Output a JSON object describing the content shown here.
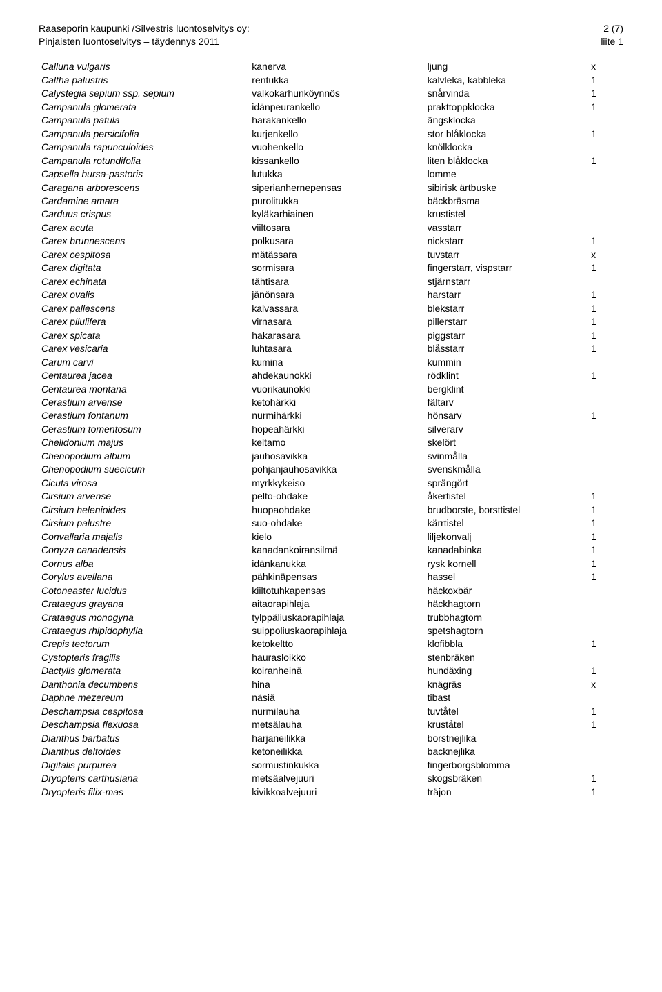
{
  "header": {
    "left1": "Raaseporin kaupunki /Silvestris luontoselvitys oy:",
    "left2": "Pinjaisten luontoselvitys – täydennys 2011",
    "right1": "2 (7)",
    "right2": "liite 1"
  },
  "table": {
    "columns": [
      "scientific",
      "finnish",
      "swedish",
      "mark"
    ],
    "col_widths_pct": [
      36,
      30,
      28,
      6
    ],
    "font_size_pt": 14,
    "italic_columns": [
      0
    ],
    "rows": [
      [
        "Calluna vulgaris",
        "kanerva",
        "ljung",
        "x"
      ],
      [
        "Caltha palustris",
        "rentukka",
        "kalvleka, kabbleka",
        "1"
      ],
      [
        "Calystegia sepium ssp. sepium",
        "valkokarhunköynnös",
        "snårvinda",
        "1"
      ],
      [
        "Campanula glomerata",
        "idänpeurankello",
        "prakttoppklocka",
        "1"
      ],
      [
        "Campanula patula",
        "harakankello",
        "ängsklocka",
        ""
      ],
      [
        "Campanula persicifolia",
        "kurjenkello",
        "stor blåklocka",
        "1"
      ],
      [
        "Campanula rapunculoides",
        "vuohenkello",
        "knölklocka",
        ""
      ],
      [
        "Campanula rotundifolia",
        "kissankello",
        "liten blåklocka",
        "1"
      ],
      [
        "Capsella bursa-pastoris",
        "lutukka",
        "lomme",
        ""
      ],
      [
        "Caragana arborescens",
        "siperianhernepensas",
        "sibirisk ärtbuske",
        ""
      ],
      [
        "Cardamine amara",
        "purolitukka",
        "bäckbräsma",
        ""
      ],
      [
        "Carduus crispus",
        "kyläkarhiainen",
        "krustistel",
        ""
      ],
      [
        "Carex acuta",
        "viiltosara",
        "vasstarr",
        ""
      ],
      [
        "Carex brunnescens",
        "polkusara",
        "nickstarr",
        "1"
      ],
      [
        "Carex cespitosa",
        "mätässara",
        "tuvstarr",
        "x"
      ],
      [
        "Carex digitata",
        "sormisara",
        "fingerstarr, vispstarr",
        "1"
      ],
      [
        "Carex echinata",
        "tähtisara",
        "stjärnstarr",
        ""
      ],
      [
        "Carex ovalis",
        "jänönsara",
        "harstarr",
        "1"
      ],
      [
        "Carex pallescens",
        "kalvassara",
        "blekstarr",
        "1"
      ],
      [
        "Carex pilulifera",
        "virnasara",
        "pillerstarr",
        "1"
      ],
      [
        "Carex spicata",
        "hakarasara",
        "piggstarr",
        "1"
      ],
      [
        "Carex vesicaria",
        "luhtasara",
        "blåsstarr",
        "1"
      ],
      [
        "Carum carvi",
        "kumina",
        "kummin",
        ""
      ],
      [
        "Centaurea jacea",
        "ahdekaunokki",
        "rödklint",
        "1"
      ],
      [
        "Centaurea montana",
        "vuorikaunokki",
        "bergklint",
        ""
      ],
      [
        "Cerastium arvense",
        "ketohärkki",
        "fältarv",
        ""
      ],
      [
        "Cerastium fontanum",
        "nurmihärkki",
        "hönsarv",
        "1"
      ],
      [
        "Cerastium tomentosum",
        "hopeahärkki",
        "silverarv",
        ""
      ],
      [
        "Chelidonium majus",
        "keltamo",
        "skelört",
        ""
      ],
      [
        "Chenopodium album",
        "jauhosavikka",
        "svinmålla",
        ""
      ],
      [
        "Chenopodium suecicum",
        "pohjanjauhosavikka",
        "svenskmålla",
        ""
      ],
      [
        "Cicuta virosa",
        "myrkkykeiso",
        "sprängört",
        ""
      ],
      [
        "Cirsium arvense",
        "pelto-ohdake",
        "åkertistel",
        "1"
      ],
      [
        "Cirsium helenioides",
        "huopaohdake",
        "brudborste, borsttistel",
        "1"
      ],
      [
        "Cirsium palustre",
        "suo-ohdake",
        "kärrtistel",
        "1"
      ],
      [
        "Convallaria majalis",
        "kielo",
        "liljekonvalj",
        "1"
      ],
      [
        "Conyza canadensis",
        "kanadankoiransilmä",
        "kanadabinka",
        "1"
      ],
      [
        "Cornus alba",
        "idänkanukka",
        "rysk kornell",
        "1"
      ],
      [
        "Corylus avellana",
        "pähkinäpensas",
        "hassel",
        "1"
      ],
      [
        "Cotoneaster lucidus",
        "kiiltotuhkapensas",
        "häckoxbär",
        ""
      ],
      [
        "Crataegus grayana",
        "aitaorapihlaja",
        "häckhagtorn",
        ""
      ],
      [
        "Crataegus monogyna",
        "tylppäliuskaorapihlaja",
        "trubbhagtorn",
        ""
      ],
      [
        "Crataegus rhipidophylla",
        "suippoliuskaorapihlaja",
        "spetshagtorn",
        ""
      ],
      [
        "Crepis tectorum",
        "ketokeltto",
        "klofibbla",
        "1"
      ],
      [
        "Cystopteris fragilis",
        "haurasloikko",
        "stenbräken",
        ""
      ],
      [
        "Dactylis glomerata",
        "koiranheinä",
        "hundäxing",
        "1"
      ],
      [
        "Danthonia decumbens",
        "hina",
        "knägräs",
        "x"
      ],
      [
        "Daphne mezereum",
        "näsiä",
        "tibast",
        ""
      ],
      [
        "Deschampsia cespitosa",
        "nurmilauha",
        "tuvtåtel",
        "1"
      ],
      [
        "Deschampsia flexuosa",
        "metsälauha",
        "kruståtel",
        "1"
      ],
      [
        "Dianthus barbatus",
        "harjaneilikka",
        "borstnejlika",
        ""
      ],
      [
        "Dianthus deltoides",
        "ketoneilikka",
        "backnejlika",
        ""
      ],
      [
        "Digitalis purpurea",
        "sormustinkukka",
        "fingerborgsblomma",
        ""
      ],
      [
        "Dryopteris carthusiana",
        "metsäalvejuuri",
        "skogsbräken",
        "1"
      ],
      [
        "Dryopteris filix-mas",
        "kivikkoalvejuuri",
        "träjon",
        "1"
      ]
    ]
  }
}
